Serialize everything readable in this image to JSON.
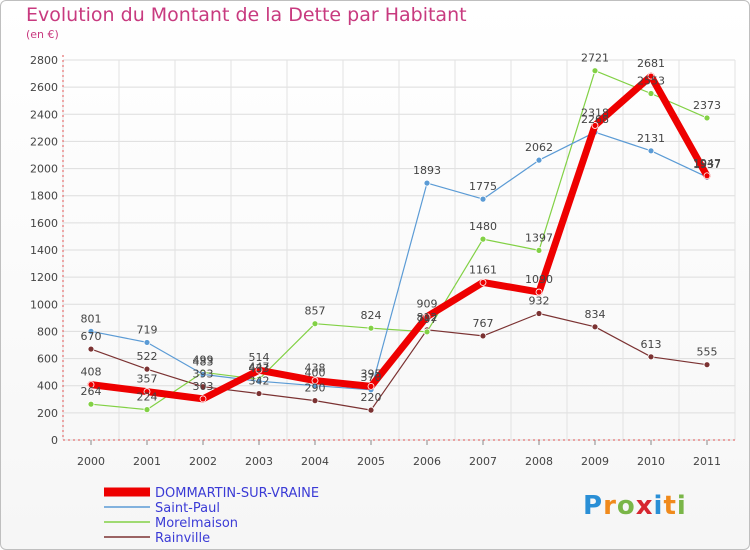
{
  "title": "Evolution du Montant de la Dette par Habitant",
  "unit": "(en €)",
  "logo": {
    "letters": [
      "P",
      "r",
      "o",
      "x",
      "i",
      "t",
      "i"
    ],
    "colors": [
      "#2a8fd6",
      "#f08a1c",
      "#7ab648",
      "#d7262f",
      "#2a8fd6",
      "#f08a1c",
      "#7ab648"
    ]
  },
  "chart_data": {
    "type": "line",
    "x": [
      "2000",
      "2001",
      "2002",
      "2003",
      "2004",
      "2005",
      "2006",
      "2007",
      "2008",
      "2009",
      "2010",
      "2011"
    ],
    "ylim": [
      0,
      2800
    ],
    "yticks": [
      0,
      200,
      400,
      600,
      800,
      1000,
      1200,
      1400,
      1600,
      1800,
      2000,
      2200,
      2400,
      2600,
      2800
    ],
    "grid": true,
    "legend": "bottom-left",
    "series": [
      {
        "name": "DOMMARTIN-SUR-VRAINE",
        "color": "#ee0000",
        "width": 7,
        "values": [
          408,
          357,
          303,
          514,
          438,
          395,
          909,
          1161,
          1090,
          2318,
          2681,
          1947
        ]
      },
      {
        "name": "Saint-Paul",
        "color": "#5b9bd5",
        "width": 1.2,
        "values": [
          801,
          719,
          483,
          433,
          400,
          370,
          1893,
          1775,
          2062,
          2268,
          2131,
          1937
        ]
      },
      {
        "name": "Morelmaison",
        "color": "#82d145",
        "width": 1.2,
        "values": [
          264,
          224,
          499,
          447,
          857,
          824,
          797,
          1480,
          1397,
          2721,
          2553,
          2373
        ]
      },
      {
        "name": "Rainville",
        "color": "#7b3232",
        "width": 1.2,
        "values": [
          670,
          522,
          393,
          342,
          290,
          220,
          812,
          767,
          932,
          834,
          613,
          555
        ]
      }
    ]
  }
}
